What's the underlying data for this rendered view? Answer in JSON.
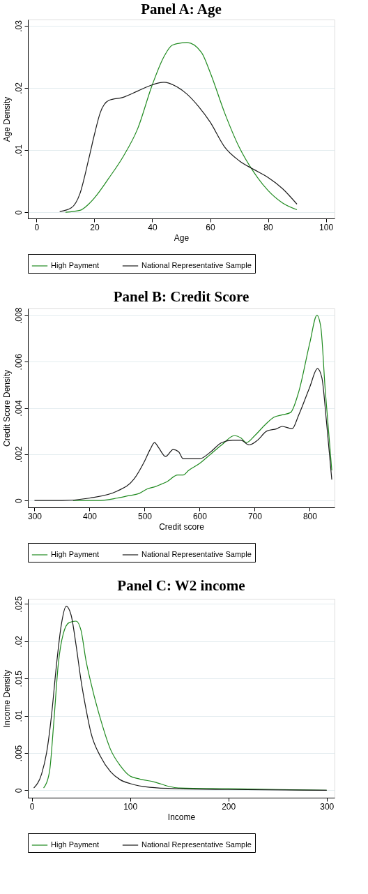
{
  "chart_data": [
    {
      "type": "line",
      "title": "Panel A: Age",
      "xlabel": "Age",
      "ylabel": "Age Density",
      "xlim": [
        -3,
        103
      ],
      "ylim": [
        -0.001,
        0.031
      ],
      "xticks": [
        0,
        20,
        40,
        60,
        80,
        100
      ],
      "yticks": [
        {
          "value": 0,
          "label": "0"
        },
        {
          "value": 0.01,
          "label": ".01"
        },
        {
          "value": 0.02,
          "label": ".02"
        },
        {
          "value": 0.03,
          "label": ".03"
        }
      ],
      "grid": "y",
      "legend": "bottom",
      "series": [
        {
          "name": "High Payment",
          "color": "#1f8a1f",
          "x": [
            10,
            15,
            18,
            20,
            25,
            30,
            35,
            40,
            44,
            47,
            52,
            57,
            60,
            65,
            70,
            75,
            80,
            85,
            90
          ],
          "values": [
            0,
            0.0003,
            0.0013,
            0.0023,
            0.0055,
            0.009,
            0.0135,
            0.0205,
            0.025,
            0.0269,
            0.0273,
            0.0257,
            0.0225,
            0.016,
            0.0105,
            0.0065,
            0.0035,
            0.0015,
            0.0004
          ]
        },
        {
          "name": "National Representative Sample",
          "color": "#1a1a1a",
          "x": [
            8,
            12,
            15,
            18,
            20,
            22,
            25,
            30,
            35,
            40,
            44,
            48,
            52,
            56,
            60,
            65,
            70,
            75,
            80,
            85,
            90
          ],
          "values": [
            0.0001,
            0.0007,
            0.003,
            0.0085,
            0.0125,
            0.016,
            0.018,
            0.0185,
            0.0195,
            0.0205,
            0.0209,
            0.0203,
            0.019,
            0.017,
            0.0145,
            0.0105,
            0.0083,
            0.0069,
            0.0056,
            0.0038,
            0.0013
          ]
        }
      ]
    },
    {
      "type": "line",
      "title": "Panel B: Credit Score",
      "xlabel": "Credit score",
      "ylabel": "Credit Score Density",
      "xlim": [
        288,
        845
      ],
      "ylim": [
        -0.0003,
        0.0083
      ],
      "xticks": [
        300,
        400,
        500,
        600,
        700,
        800
      ],
      "yticks": [
        {
          "value": 0,
          "label": "0"
        },
        {
          "value": 0.002,
          "label": ".002"
        },
        {
          "value": 0.004,
          "label": ".004"
        },
        {
          "value": 0.006,
          "label": ".006"
        },
        {
          "value": 0.008,
          "label": ".008"
        }
      ],
      "grid": "y",
      "legend": "bottom",
      "series": [
        {
          "name": "High Payment",
          "color": "#1f8a1f",
          "x": [
            370,
            420,
            450,
            470,
            490,
            505,
            520,
            530,
            540,
            560,
            570,
            580,
            600,
            620,
            640,
            663,
            675,
            685,
            700,
            720,
            735,
            750,
            765,
            780,
            800,
            813,
            820,
            828,
            840
          ],
          "values": [
            0,
            0,
            0.0001,
            0.0002,
            0.0003,
            0.0005,
            0.0006,
            0.0007,
            0.0008,
            0.0011,
            0.0011,
            0.0013,
            0.0016,
            0.002,
            0.0024,
            0.0028,
            0.0027,
            0.0025,
            0.0028,
            0.0033,
            0.0036,
            0.0037,
            0.0038,
            0.0047,
            0.0068,
            0.008,
            0.0075,
            0.0048,
            0.0013
          ]
        },
        {
          "name": "National Representative Sample",
          "color": "#1a1a1a",
          "x": [
            300,
            350,
            400,
            450,
            480,
            500,
            510,
            518,
            525,
            538,
            552,
            562,
            570,
            600,
            620,
            640,
            660,
            675,
            690,
            705,
            722,
            740,
            750,
            768,
            780,
            800,
            814,
            822,
            830,
            840
          ],
          "values": [
            0,
            0,
            0.0001,
            0.0004,
            0.0009,
            0.0017,
            0.0022,
            0.0025,
            0.0023,
            0.0019,
            0.0022,
            0.0021,
            0.0018,
            0.0018,
            0.0021,
            0.0025,
            0.0026,
            0.0026,
            0.0024,
            0.0026,
            0.003,
            0.0031,
            0.0032,
            0.0031,
            0.0037,
            0.0049,
            0.0057,
            0.0053,
            0.0035,
            0.0009
          ]
        }
      ]
    },
    {
      "type": "line",
      "title": "Panel C: W2 income",
      "xlabel": "Income",
      "ylabel": "Income Density",
      "xlim": [
        -4,
        308
      ],
      "ylim": [
        -0.001,
        0.0257
      ],
      "xticks": [
        0,
        100,
        200,
        300
      ],
      "yticks": [
        {
          "value": 0,
          "label": "0"
        },
        {
          "value": 0.005,
          "label": ".005"
        },
        {
          "value": 0.01,
          "label": ".01"
        },
        {
          "value": 0.015,
          "label": ".015"
        },
        {
          "value": 0.02,
          "label": ".02"
        },
        {
          "value": 0.025,
          "label": ".025"
        }
      ],
      "grid": "y",
      "legend": "bottom",
      "series": [
        {
          "name": "High Payment",
          "color": "#1f8a1f",
          "x": [
            12,
            18,
            22,
            27,
            32,
            38,
            45,
            50,
            55,
            60,
            70,
            80,
            90,
            100,
            110,
            125,
            140,
            150,
            200,
            250,
            300
          ],
          "values": [
            0.0003,
            0.0025,
            0.0085,
            0.017,
            0.021,
            0.0225,
            0.0227,
            0.0215,
            0.0175,
            0.0145,
            0.0095,
            0.0055,
            0.0033,
            0.0019,
            0.0015,
            0.0011,
            0.0005,
            0.0003,
            0.0002,
            0.0001,
            0
          ]
        },
        {
          "name": "National Representative Sample",
          "color": "#1a1a1a",
          "x": [
            2,
            10,
            15,
            20,
            25,
            30,
            35,
            40,
            45,
            50,
            55,
            60,
            70,
            80,
            90,
            100,
            120,
            150,
            200,
            300
          ],
          "values": [
            0.0003,
            0.0022,
            0.005,
            0.01,
            0.0167,
            0.0222,
            0.0247,
            0.0235,
            0.0195,
            0.0148,
            0.011,
            0.0078,
            0.0045,
            0.0025,
            0.0014,
            0.0009,
            0.0004,
            0.0002,
            0.0001,
            0
          ]
        }
      ]
    }
  ]
}
